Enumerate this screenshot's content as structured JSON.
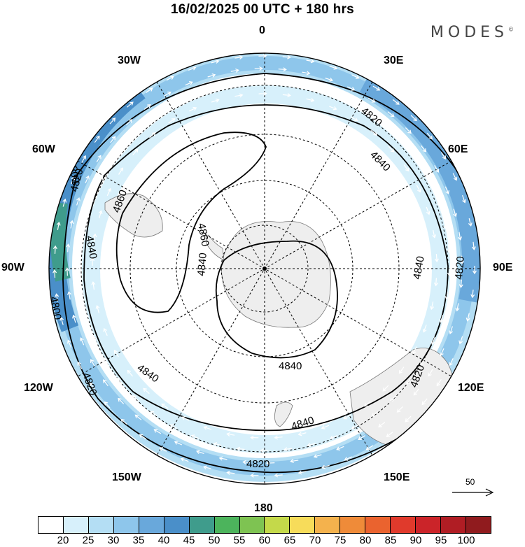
{
  "header": {
    "title": "16/02/2025  00 UTC  + 180 hrs",
    "brand": "MODES",
    "brand_mark": "©"
  },
  "map": {
    "projection": "south-polar-stereographic",
    "longitude_labels": {
      "top": "0",
      "top_right": "30E",
      "right_upper": "60E",
      "right": "90E",
      "right_lower": "120E",
      "bottom_right": "150E",
      "bottom": "180",
      "bottom_left": "150W",
      "left_lower": "120W",
      "left": "90W",
      "left_upper": "60W",
      "top_left": "30W"
    },
    "contour_labels": [
      "4800",
      "4820",
      "4840",
      "4860"
    ],
    "land_color": "#eeeeee",
    "contour_color": "#000000"
  },
  "reference_vector": {
    "label": "50"
  },
  "colorbar": {
    "colors": [
      "#ffffff",
      "#d7f0fb",
      "#b4def4",
      "#8ec6eb",
      "#69a8db",
      "#4a8fc9",
      "#3f9c8c",
      "#4cb45c",
      "#7ec352",
      "#c4d94a",
      "#f7dc5a",
      "#f4b24d",
      "#ef8b39",
      "#ea632f",
      "#e03a2c",
      "#cb2429",
      "#b01d24",
      "#901b1e"
    ],
    "labels": [
      "20",
      "25",
      "30",
      "35",
      "40",
      "45",
      "50",
      "55",
      "60",
      "65",
      "70",
      "75",
      "80",
      "85",
      "90",
      "95",
      "100"
    ]
  }
}
